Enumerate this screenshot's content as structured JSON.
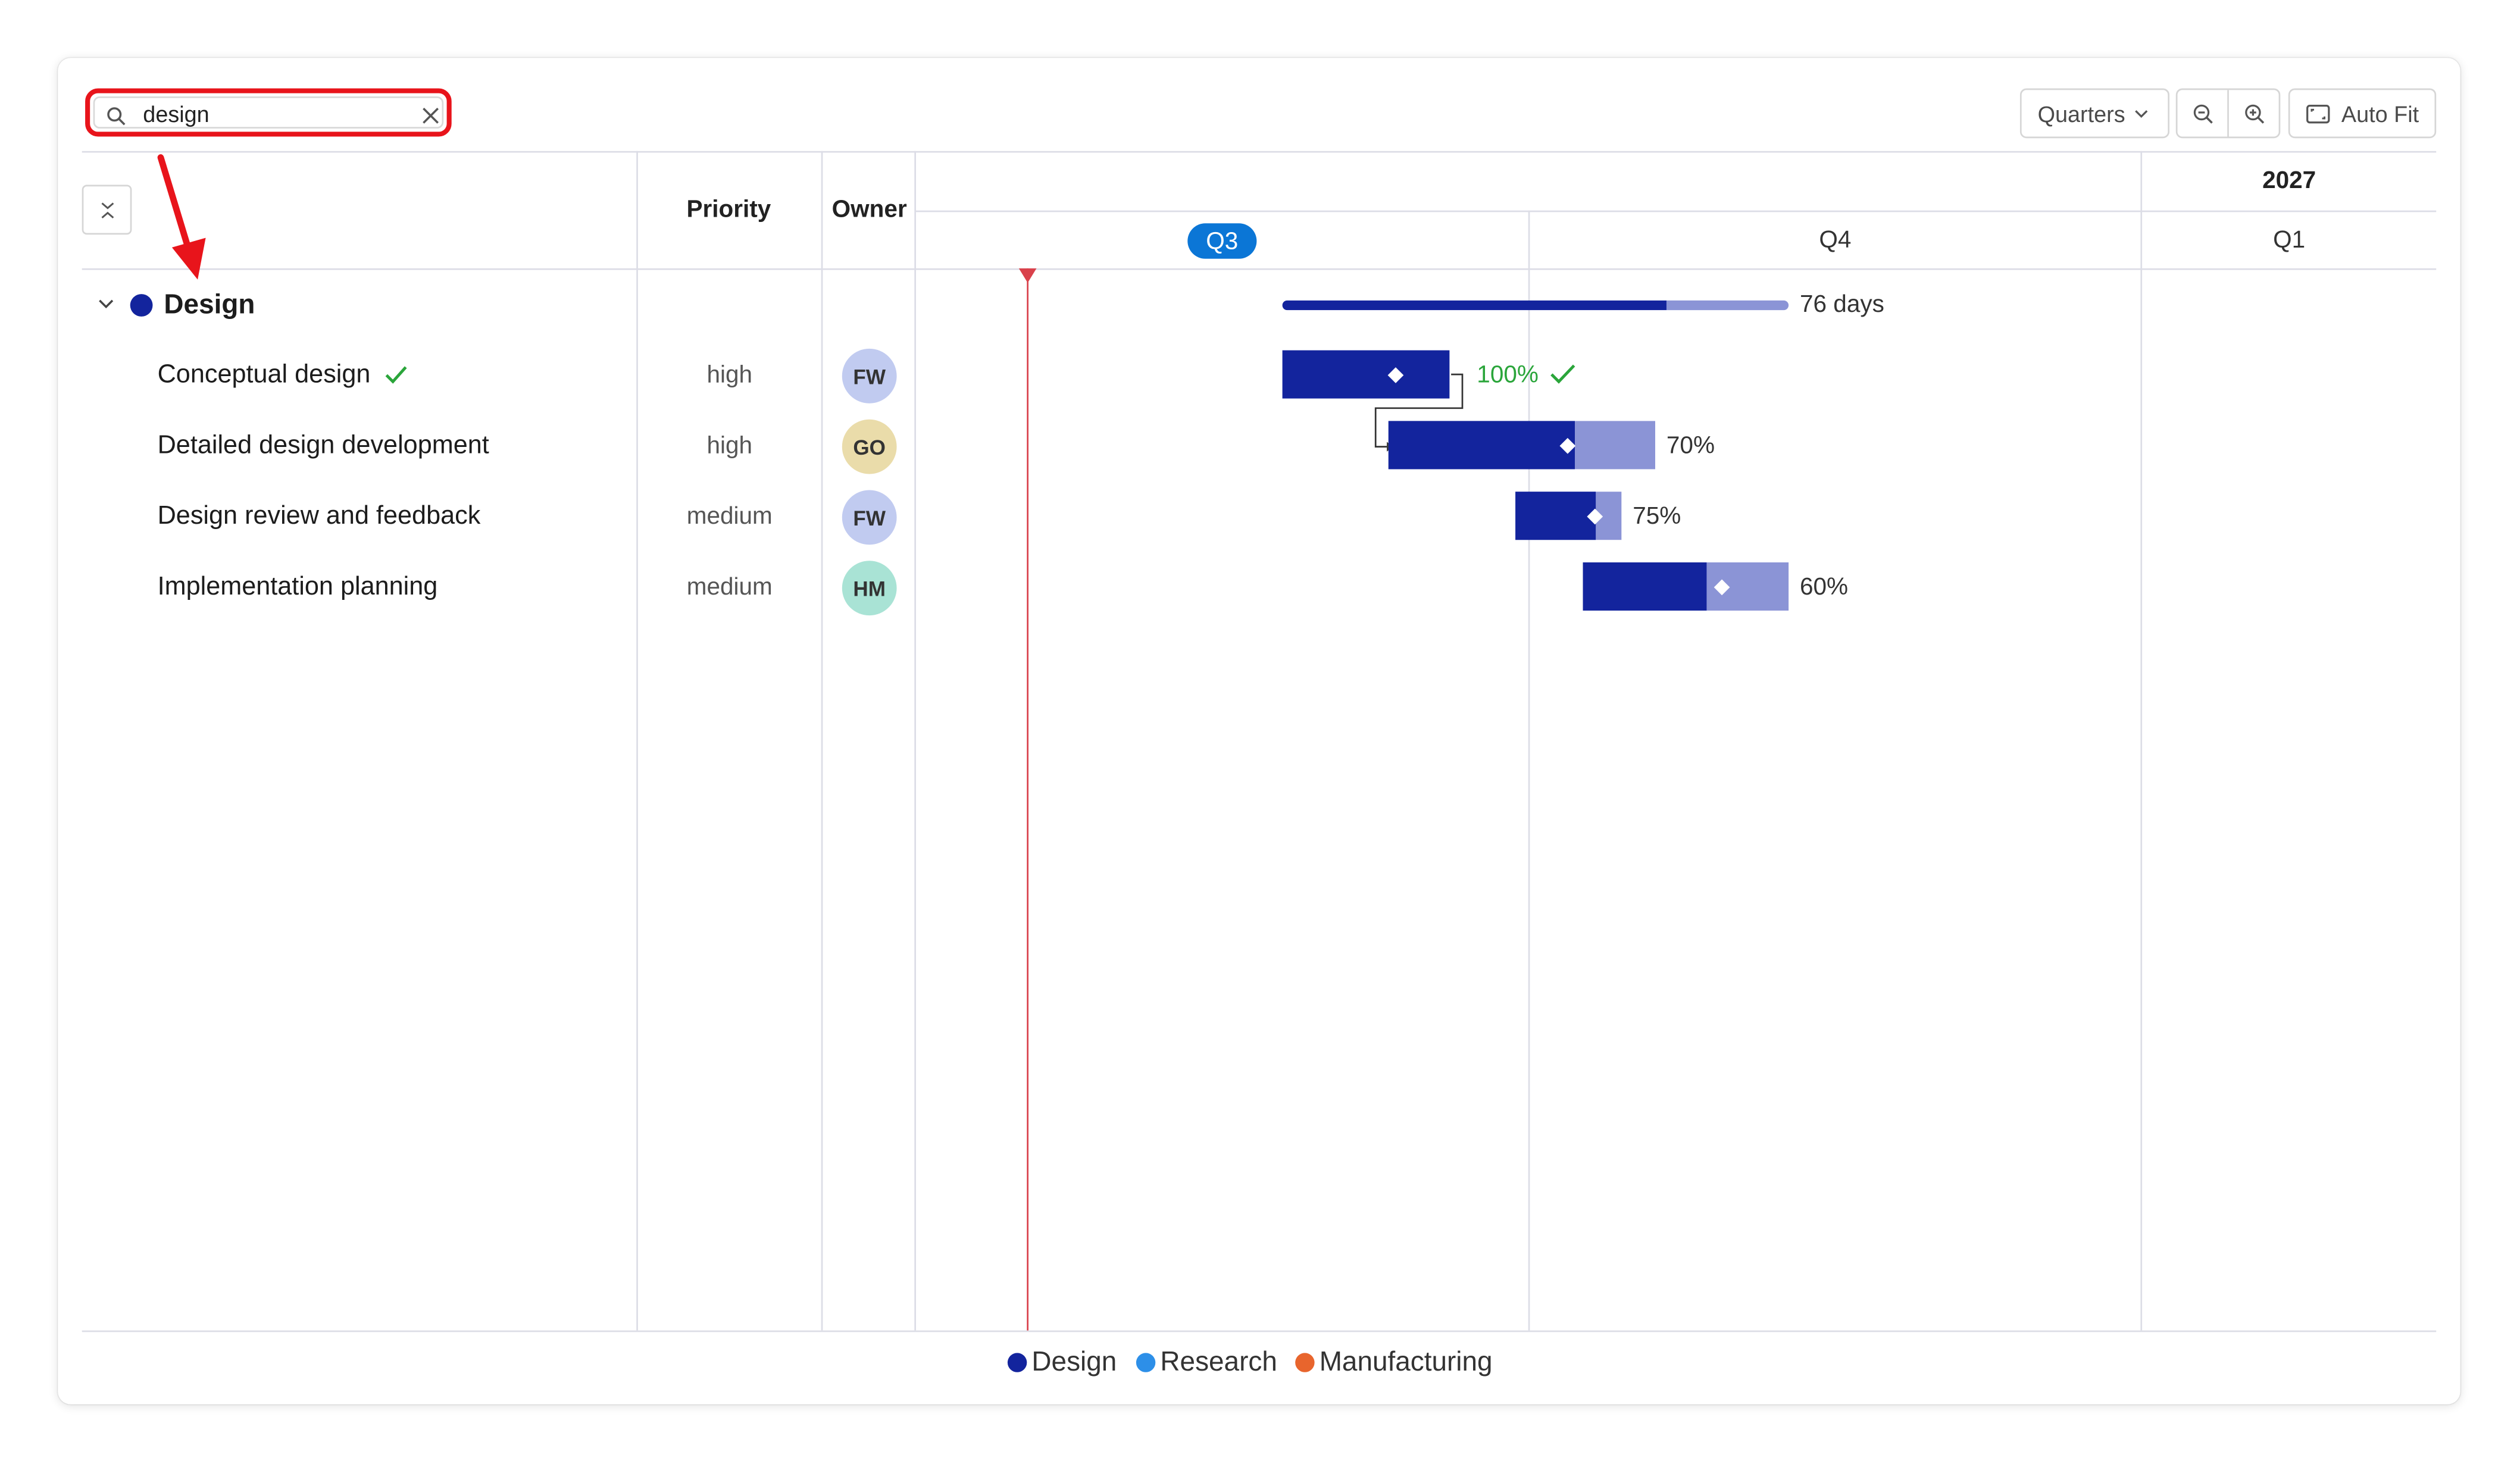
{
  "toolbar": {
    "search_value": "design",
    "view_select": "Quarters",
    "auto_fit_label": "Auto Fit"
  },
  "header": {
    "priority_label": "Priority",
    "owner_label": "Owner",
    "year": "2027",
    "quarters": [
      "Q3",
      "Q4",
      "Q1"
    ]
  },
  "group": {
    "name": "Design",
    "color": "#13249d",
    "duration": "76 days",
    "progress": 0.76
  },
  "tasks": [
    {
      "name": "Conceptual design",
      "completed": true,
      "priority": "high",
      "owner": "FW",
      "owner_color": "#c1cbf0",
      "progress": 1.0,
      "progress_label": "100%"
    },
    {
      "name": "Detailed design development",
      "completed": false,
      "priority": "high",
      "owner": "GO",
      "owner_color": "#eadcaa",
      "progress": 0.7,
      "progress_label": "70%"
    },
    {
      "name": "Design review and feedback",
      "completed": false,
      "priority": "medium",
      "owner": "FW",
      "owner_color": "#c1cbf0",
      "progress": 0.75,
      "progress_label": "75%"
    },
    {
      "name": "Implementation planning",
      "completed": false,
      "priority": "medium",
      "owner": "HM",
      "owner_color": "#a9e3d5",
      "progress": 0.6,
      "progress_label": "60%"
    }
  ],
  "legend": [
    {
      "label": "Design",
      "color": "#13249d"
    },
    {
      "label": "Research",
      "color": "#2d8fe8"
    },
    {
      "label": "Manufacturing",
      "color": "#e8652d"
    }
  ],
  "colors": {
    "accent": "#0b76d6",
    "today_marker": "#d9414b",
    "check": "#2aa53a",
    "annotation": "#e8141b"
  },
  "icons": {
    "search": "search-icon",
    "clear": "close-icon",
    "zoom_out": "zoom-out-icon",
    "zoom_in": "zoom-in-icon",
    "auto_fit": "fit-screen-icon",
    "collapse": "collapse-all-icon"
  }
}
